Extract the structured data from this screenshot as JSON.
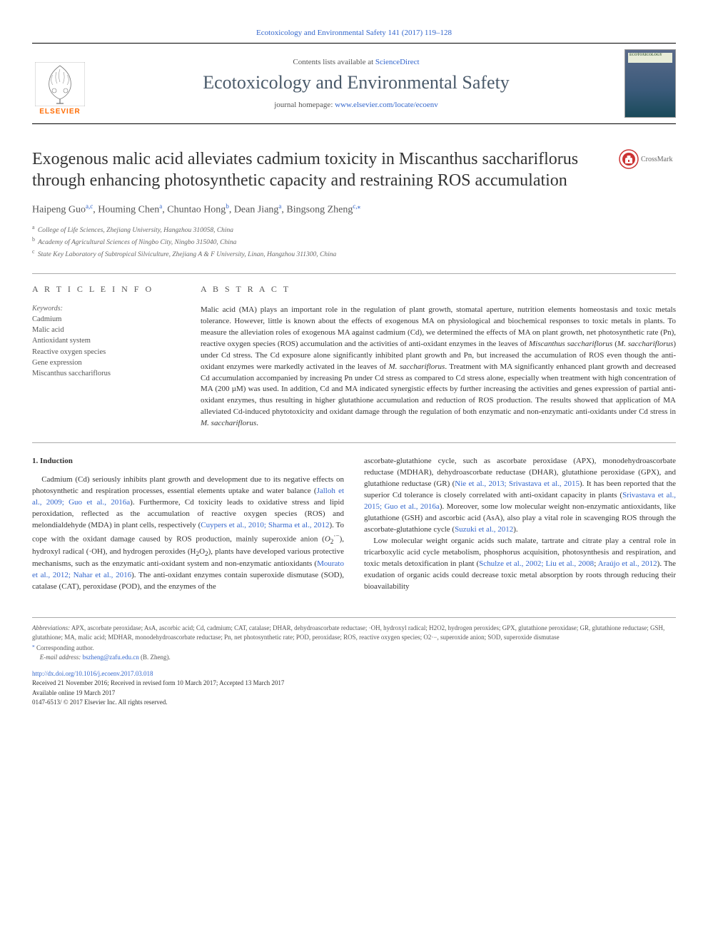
{
  "citation": "Ecotoxicology and Environmental Safety 141 (2017) 119–128",
  "banner": {
    "contents_prefix": "Contents lists available at ",
    "contents_link": "ScienceDirect",
    "journal_title": "Ecotoxicology and Environmental Safety",
    "homepage_prefix": "journal homepage: ",
    "homepage_link": "www.elsevier.com/locate/ecoenv",
    "elsevier": "ELSEVIER",
    "cover_line1": "ECOTOXICOLOGY",
    "cover_line2": "& ENVIRONMENTAL",
    "cover_line3": "SAFETY"
  },
  "crossmark_label": "CrossMark",
  "title": "Exogenous malic acid alleviates cadmium toxicity in Miscanthus sacchariflorus through enhancing photosynthetic capacity and restraining ROS accumulation",
  "authors_html": "Haipeng Guo<sup>a,c</sup>, Houming Chen<sup>a</sup>, Chuntao Hong<sup>b</sup>, Dean Jiang<sup>a</sup>, Bingsong Zheng<sup>c,</sup><sup class=\"corr\">⁎</sup>",
  "affiliations": [
    {
      "mark": "a",
      "text": "College of Life Sciences, Zhejiang University, Hangzhou 310058, China"
    },
    {
      "mark": "b",
      "text": "Academy of Agricultural Sciences of Ningbo City, Ningbo 315040, China"
    },
    {
      "mark": "c",
      "text": "State Key Laboratory of Subtropical Silviculture, Zhejiang A & F University, Linan, Hangzhou 311300, China"
    }
  ],
  "article_info_header": "A R T I C L E  I N F O",
  "abstract_header": "A B S T R A C T",
  "keywords_label": "Keywords:",
  "keywords": [
    "Cadmium",
    "Malic acid",
    "Antioxidant system",
    "Reactive oxygen species",
    "Gene expression",
    "Miscanthus sacchariflorus"
  ],
  "abstract": "Malic acid (MA) plays an important role in the regulation of plant growth, stomatal aperture, nutrition elements homeostasis and toxic metals tolerance. However, little is known about the effects of exogenous MA on physiological and biochemical responses to toxic metals in plants. To measure the alleviation roles of exogenous MA against cadmium (Cd), we determined the effects of MA on plant growth, net photosynthetic rate (Pn), reactive oxygen species (ROS) accumulation and the activities of anti-oxidant enzymes in the leaves of Miscanthus sacchariflorus (M. sacchariflorus) under Cd stress. The Cd exposure alone significantly inhibited plant growth and Pn, but increased the accumulation of ROS even though the anti-oxidant enzymes were markedly activated in the leaves of M. sacchariflorus. Treatment with MA significantly enhanced plant growth and decreased Cd accumulation accompanied by increasing Pn under Cd stress as compared to Cd stress alone, especially when treatment with high concentration of MA (200 µM) was used. In addition, Cd and MA indicated synergistic effects by further increasing the activities and genes expression of partial anti-oxidant enzymes, thus resulting in higher glutathione accumulation and reduction of ROS production. The results showed that application of MA alleviated Cd-induced phytotoxicity and oxidant damage through the regulation of both enzymatic and non-enzymatic anti-oxidants under Cd stress in M. sacchariflorus.",
  "body": {
    "induction_heading": "1. Induction",
    "left_para": "Cadmium (Cd) seriously inhibits plant growth and development due to its negative effects on photosynthetic and respiration processes, essential elements uptake and water balance (Jalloh et al., 2009; Guo et al., 2016a). Furthermore, Cd toxicity leads to oxidative stress and lipid peroxidation, reflected as the accumulation of reactive oxygen species (ROS) and melondialdehyde (MDA) in plant cells, respectively (Cuypers et al., 2010; Sharma et al., 2012). To cope with the oxidant damage caused by ROS production, mainly superoxide anion (O2·−), hydroxyl radical (·OH), and hydrogen peroxides (H2O2), plants have developed various protective mechanisms, such as the enzymatic anti-oxidant system and non-enzymatic antioxidants (Mourato et al., 2012; Nahar et al., 2016). The anti-oxidant enzymes contain superoxide dismutase (SOD), catalase (CAT), peroxidase (POD), and the enzymes of the",
    "right_para1": "ascorbate-glutathione cycle, such as ascorbate peroxidase (APX), monodehydroascorbate reductase (MDHAR), dehydroascorbate reductase (DHAR), glutathione peroxidase (GPX), and glutathione reductase (GR) (Nie et al., 2013; Srivastava et al., 2015). It has been reported that the superior Cd tolerance is closely correlated with anti-oxidant capacity in plants (Srivastava et al., 2015; Guo et al., 2016a). Moreover, some low molecular weight non-enzymatic antioxidants, like glutathione (GSH) and ascorbic acid (AsA), also play a vital role in scavenging ROS through the ascorbate-glutathione cycle (Suzuki et al., 2012).",
    "right_para2": "Low molecular weight organic acids such malate, tartrate and citrate play a central role in tricarboxylic acid cycle metabolism, phosphorus acquisition, photosynthesis and respiration, and toxic metals detoxification in plant (Schulze et al., 2002; Liu et al., 2008; Araújo et al., 2012). The exudation of organic acids could decrease toxic metal absorption by roots through reducing their bioavailability"
  },
  "citations_left": [
    "Jalloh et al., 2009; Guo et al., 2016a",
    "Cuypers et al., 2010; Sharma et al., 2012",
    "Mourato et al., 2012; Nahar et al., 2016"
  ],
  "citations_right": [
    "Nie et al., 2013; Srivastava et al., 2015",
    "Srivastava et al., 2015; Guo et al., 2016a",
    "Suzuki et al., 2012",
    "Schulze et al., 2002; Liu et al., 2008",
    "Araújo et al., 2012"
  ],
  "footnotes": {
    "abbrev_label": "Abbreviations:",
    "abbrev_text": " APX, ascorbate peroxidase; AsA, ascorbic acid; Cd, cadmium; CAT, catalase; DHAR, dehydroascorbate reductase; ·OH, hydroxyl radical; H2O2, hydrogen peroxides; GPX, glutathione peroxidase; GR, glutathione reductase; GSH, glutathione; MA, malic acid; MDHAR, monodehydroascorbate reductase; Pn, net photosynthetic rate; POD, peroxidase; ROS, reactive oxygen species; O2·−, superoxide anion; SOD, superoxide dismutase",
    "corr_label": "⁎ Corresponding author.",
    "email_label": "E-mail address: ",
    "email": "bszheng@zafu.edu.cn",
    "email_suffix": " (B. Zheng)."
  },
  "doi": {
    "url": "http://dx.doi.org/10.1016/j.ecoenv.2017.03.018",
    "received": "Received 21 November 2016; Received in revised form 10 March 2017; Accepted 13 March 2017",
    "available": "Available online 19 March 2017",
    "copyright": "0147-6513/ © 2017 Elsevier Inc. All rights reserved."
  },
  "colors": {
    "link": "#3366cc",
    "elsevier_orange": "#ff6b00",
    "journal_title": "#4a5a6a",
    "text": "#333333",
    "muted": "#666666",
    "rule": "#aaaaaa"
  }
}
